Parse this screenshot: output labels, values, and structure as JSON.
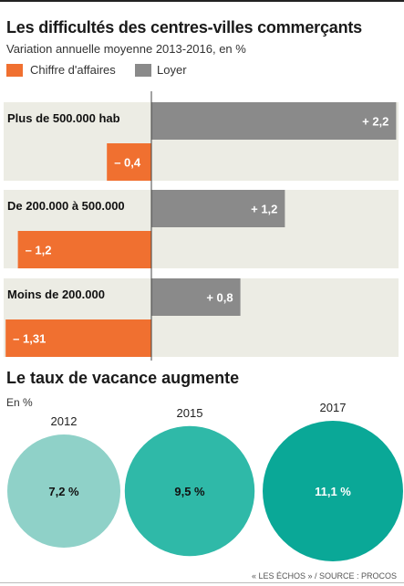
{
  "title": "Les difficultés des centres-villes commerçants",
  "subtitle": "Variation annuelle moyenne 2013-2016, en %",
  "legend": [
    {
      "label": "Chiffre d'affaires",
      "color": "#f07030"
    },
    {
      "label": "Loyer",
      "color": "#8a8a8a"
    }
  ],
  "chart_data": [
    {
      "type": "bar",
      "categories": [
        "Plus de 500.000 hab",
        "De 200.000 à 500.000",
        "Moins de 200.000"
      ],
      "series": [
        {
          "name": "Loyer",
          "values": [
            2.2,
            1.2,
            0.8
          ],
          "labels": [
            "+ 2,2",
            "+ 1,2",
            "+ 0,8"
          ],
          "color": "#8a8a8a"
        },
        {
          "name": "Chiffre d'affaires",
          "values": [
            -0.4,
            -1.2,
            -1.31
          ],
          "labels": [
            "– 0,4",
            "– 1,2",
            "– 1,31"
          ],
          "color": "#f07030"
        }
      ],
      "xlim": [
        -1.31,
        2.2
      ],
      "title": "",
      "xlabel": "",
      "ylabel": ""
    },
    {
      "type": "bubble",
      "title": "Le taux de vacance augmente",
      "unit": "En %",
      "categories": [
        "2012",
        "2015",
        "2017"
      ],
      "values": [
        7.2,
        9.5,
        11.1
      ],
      "labels": [
        "7,2 %",
        "9,5 %",
        "11,1 %"
      ],
      "colors": [
        "#8fd1c8",
        "#2fb9a8",
        "#0aa897"
      ]
    }
  ],
  "source": "« LES ÉCHOS » / SOURCE : PROCOS"
}
